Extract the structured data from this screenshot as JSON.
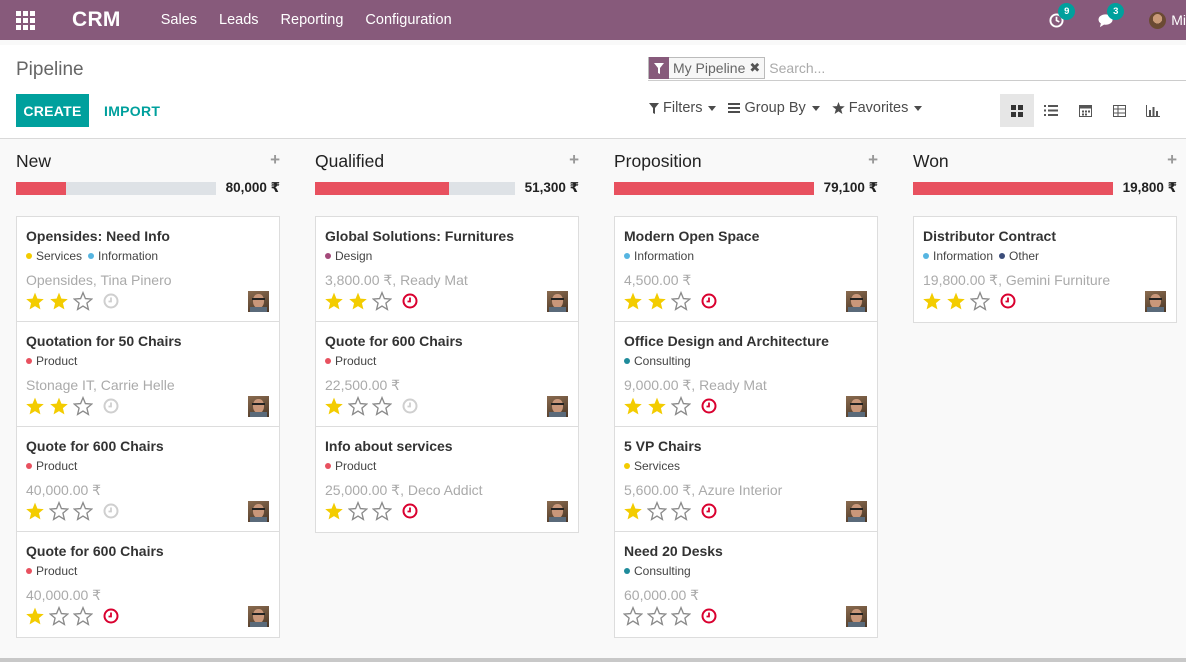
{
  "navbar": {
    "brand": "CRM",
    "menu": [
      "Sales",
      "Leads",
      "Reporting",
      "Configuration"
    ],
    "activity_count": "9",
    "message_count": "3",
    "user_name": "Mi",
    "bg_color": "#875a7b"
  },
  "control_panel": {
    "breadcrumb": "Pipeline",
    "create_label": "CREATE",
    "import_label": "IMPORT",
    "facet_label": "My Pipeline",
    "search_placeholder": "Search...",
    "filters_label": "Filters",
    "groupby_label": "Group By",
    "favorites_label": "Favorites",
    "views": [
      "kanban-icon",
      "list-icon",
      "calendar-icon",
      "pivot-icon",
      "graph-icon"
    ],
    "active_view": "kanban-icon"
  },
  "colors": {
    "accent": "#00a09d",
    "brand": "#875a7b",
    "progress": "#e8515f",
    "star": "#f3cc00",
    "overdue": "#d9002f"
  },
  "columns": [
    {
      "title": "New",
      "total": "80,000 ₹",
      "progress": 0.25,
      "cards": [
        {
          "title": "Opensides: Need Info",
          "tags": [
            {
              "name": "Services",
              "color": "#f3cc00"
            },
            {
              "name": "Information",
              "color": "#56b5e1"
            }
          ],
          "sub": "Opensides, Tina Pinero",
          "stars": 2,
          "overdue": false
        },
        {
          "title": "Quotation for 50 Chairs",
          "tags": [
            {
              "name": "Product",
              "color": "#e8515f"
            }
          ],
          "sub": "Stonage IT, Carrie Helle",
          "stars": 2,
          "overdue": false
        },
        {
          "title": "Quote for 600 Chairs",
          "tags": [
            {
              "name": "Product",
              "color": "#e8515f"
            }
          ],
          "sub": "40,000.00 ₹",
          "stars": 1,
          "overdue": false
        },
        {
          "title": "Quote for 600 Chairs",
          "tags": [
            {
              "name": "Product",
              "color": "#e8515f"
            }
          ],
          "sub": "40,000.00 ₹",
          "stars": 1,
          "overdue": true
        }
      ]
    },
    {
      "title": "Qualified",
      "total": "51,300 ₹",
      "progress": 0.67,
      "cards": [
        {
          "title": "Global Solutions: Furnitures",
          "tags": [
            {
              "name": "Design",
              "color": "#a44a7a"
            }
          ],
          "sub": "3,800.00 ₹, Ready Mat",
          "stars": 2,
          "overdue": true
        },
        {
          "title": "Quote for 600 Chairs",
          "tags": [
            {
              "name": "Product",
              "color": "#e8515f"
            }
          ],
          "sub": "22,500.00 ₹",
          "stars": 1,
          "overdue": false
        },
        {
          "title": "Info about services",
          "tags": [
            {
              "name": "Product",
              "color": "#e8515f"
            }
          ],
          "sub": "25,000.00 ₹, Deco Addict",
          "stars": 1,
          "overdue": true
        }
      ]
    },
    {
      "title": "Proposition",
      "total": "79,100 ₹",
      "progress": 1.0,
      "cards": [
        {
          "title": "Modern Open Space",
          "tags": [
            {
              "name": "Information",
              "color": "#56b5e1"
            }
          ],
          "sub": "4,500.00 ₹",
          "stars": 2,
          "overdue": true
        },
        {
          "title": "Office Design and Architecture",
          "tags": [
            {
              "name": "Consulting",
              "color": "#1f8b9b"
            }
          ],
          "sub": "9,000.00 ₹, Ready Mat",
          "stars": 2,
          "overdue": true
        },
        {
          "title": "5 VP Chairs",
          "tags": [
            {
              "name": "Services",
              "color": "#f3cc00"
            }
          ],
          "sub": "5,600.00 ₹, Azure Interior",
          "stars": 1,
          "overdue": true
        },
        {
          "title": "Need 20 Desks",
          "tags": [
            {
              "name": "Consulting",
              "color": "#1f8b9b"
            }
          ],
          "sub": "60,000.00 ₹",
          "stars": 0,
          "overdue": true
        }
      ]
    },
    {
      "title": "Won",
      "total": "19,800 ₹",
      "progress": 1.0,
      "cards": [
        {
          "title": "Distributor Contract",
          "tags": [
            {
              "name": "Information",
              "color": "#56b5e1"
            },
            {
              "name": "Other",
              "color": "#3c4d7a"
            }
          ],
          "sub": "19,800.00 ₹, Gemini Furniture",
          "stars": 2,
          "overdue": true
        }
      ]
    }
  ]
}
